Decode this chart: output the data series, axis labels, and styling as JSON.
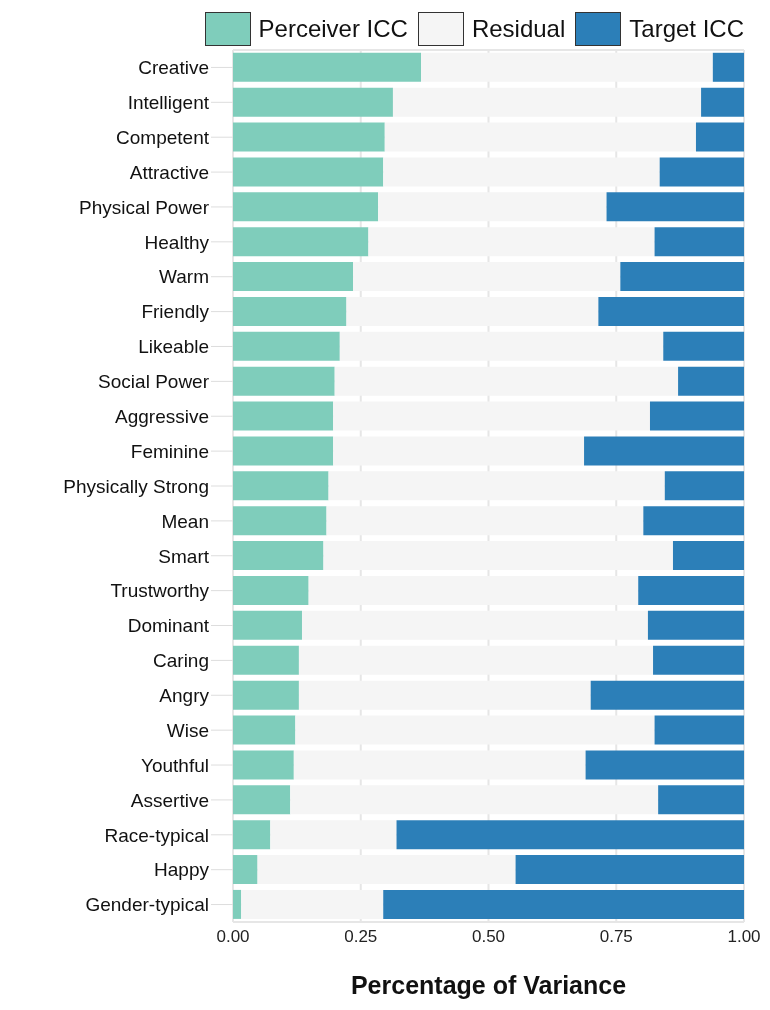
{
  "chart_data": {
    "type": "bar",
    "orientation": "horizontal",
    "stacked": true,
    "xlabel": "Percentage of Variance",
    "categories": [
      "Creative",
      "Intelligent",
      "Competent",
      "Attractive",
      "Physical Power",
      "Healthy",
      "Warm",
      "Friendly",
      "Likeable",
      "Social Power",
      "Aggressive",
      "Feminine",
      "Physically Strong",
      "Mean",
      "Smart",
      "Trustworthy",
      "Dominant",
      "Caring",
      "Angry",
      "Wise",
      "Youthful",
      "Assertive",
      "Race-typical",
      "Happy",
      "Gender-typical"
    ],
    "series": [
      {
        "name": "Perceiver ICC",
        "color": "#7fcdbb",
        "values": [
          0.368,
          0.313,
          0.297,
          0.294,
          0.284,
          0.265,
          0.235,
          0.222,
          0.209,
          0.199,
          0.196,
          0.196,
          0.187,
          0.183,
          0.177,
          0.148,
          0.135,
          0.129,
          0.129,
          0.122,
          0.119,
          0.112,
          0.073,
          0.048,
          0.016
        ]
      },
      {
        "name": "Residual",
        "color": "#f5f5f5",
        "values": [
          0.571,
          0.603,
          0.609,
          0.541,
          0.447,
          0.56,
          0.523,
          0.493,
          0.633,
          0.672,
          0.62,
          0.491,
          0.658,
          0.62,
          0.684,
          0.645,
          0.677,
          0.693,
          0.571,
          0.703,
          0.571,
          0.72,
          0.247,
          0.505,
          0.278
        ]
      },
      {
        "name": "Target ICC",
        "color": "#2c7fb8",
        "values": [
          0.061,
          0.084,
          0.094,
          0.165,
          0.269,
          0.175,
          0.242,
          0.285,
          0.158,
          0.129,
          0.184,
          0.313,
          0.155,
          0.197,
          0.139,
          0.207,
          0.188,
          0.178,
          0.3,
          0.175,
          0.31,
          0.168,
          0.68,
          0.447,
          0.706
        ]
      }
    ],
    "xlim": [
      0,
      1
    ],
    "xticks": [
      {
        "value": 0,
        "label": "0.00"
      },
      {
        "value": 0.25,
        "label": "0.25"
      },
      {
        "value": 0.5,
        "label": "0.50"
      },
      {
        "value": 0.75,
        "label": "0.75"
      },
      {
        "value": 1,
        "label": "1.00"
      }
    ],
    "grid": true,
    "legend": "top"
  }
}
